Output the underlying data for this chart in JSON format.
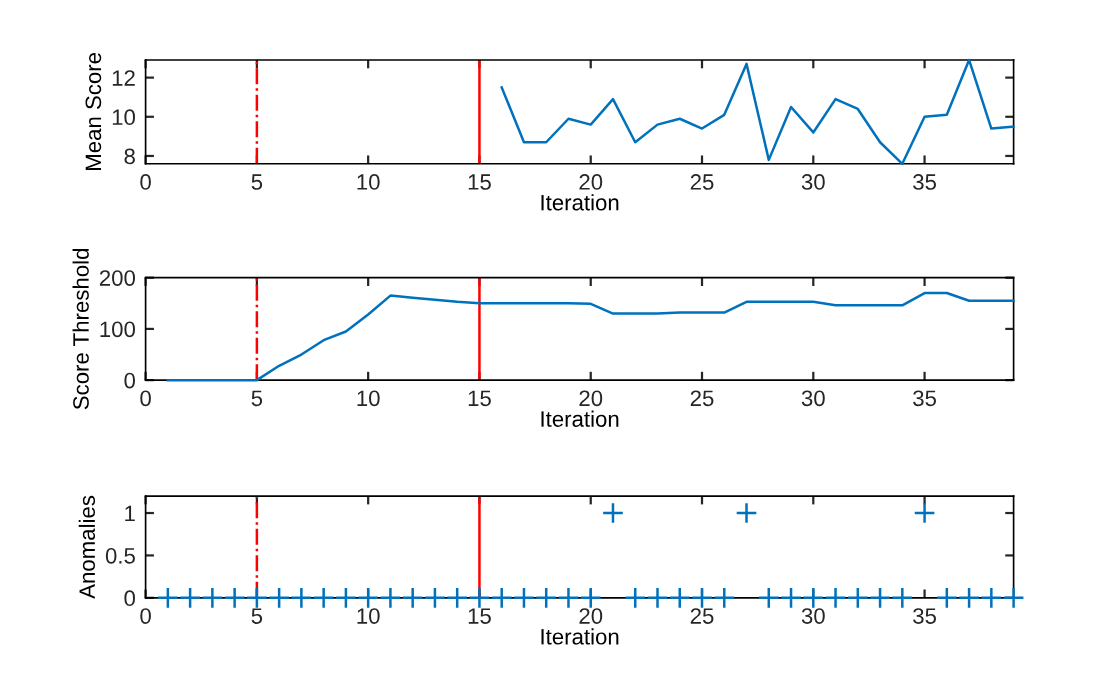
{
  "chart_data": [
    {
      "type": "line",
      "ylabel": "Mean Score",
      "xlabel": "Iteration",
      "x": [
        16,
        17,
        18,
        19,
        20,
        21,
        22,
        23,
        24,
        25,
        26,
        27,
        28,
        29,
        30,
        31,
        32,
        33,
        34,
        35,
        36,
        37,
        38,
        39
      ],
      "series": [
        {
          "color": "#0072bd",
          "values": [
            11.5,
            8.7,
            8.7,
            9.9,
            9.6,
            10.9,
            8.7,
            9.6,
            9.9,
            9.4,
            10.1,
            12.7,
            7.8,
            10.5,
            9.2,
            10.9,
            10.4,
            8.7,
            7.6,
            10.0,
            10.1,
            12.9,
            9.4,
            9.5
          ]
        }
      ],
      "xlim": [
        0,
        39
      ],
      "xticks": [
        0,
        5,
        10,
        15,
        20,
        25,
        30,
        35
      ],
      "ylim": [
        7.6,
        12.9
      ],
      "yticks": [
        8,
        10,
        12
      ],
      "grid": false,
      "marker": "none",
      "ref_lines": [
        {
          "axis": "x",
          "value": 5,
          "color": "#ff0000",
          "line_style": "dashdot"
        },
        {
          "axis": "x",
          "value": 15,
          "color": "#ff0000",
          "line_style": "solid"
        }
      ]
    },
    {
      "type": "line",
      "ylabel": "Score Threshold",
      "xlabel": "Iteration",
      "x": [
        1,
        2,
        3,
        4,
        5,
        6,
        7,
        8,
        9,
        10,
        11,
        12,
        13,
        14,
        15,
        16,
        17,
        18,
        19,
        20,
        21,
        22,
        23,
        24,
        25,
        26,
        27,
        28,
        29,
        30,
        31,
        32,
        33,
        34,
        35,
        36,
        37,
        38,
        39
      ],
      "series": [
        {
          "color": "#0072bd",
          "values": [
            0,
            0,
            0,
            0,
            0,
            28,
            50,
            78,
            95,
            128,
            165,
            161,
            157,
            153,
            150,
            150,
            150,
            150,
            150,
            149,
            130,
            130,
            130,
            132,
            132,
            132,
            153,
            153,
            153,
            153,
            146,
            146,
            146,
            146,
            170,
            170,
            155,
            155,
            155
          ]
        }
      ],
      "xlim": [
        0,
        39
      ],
      "xticks": [
        0,
        5,
        10,
        15,
        20,
        25,
        30,
        35
      ],
      "ylim": [
        0,
        200
      ],
      "yticks": [
        0,
        100,
        200
      ],
      "grid": false,
      "marker": "none",
      "ref_lines": [
        {
          "axis": "x",
          "value": 5,
          "color": "#ff0000",
          "line_style": "dashdot"
        },
        {
          "axis": "x",
          "value": 15,
          "color": "#ff0000",
          "line_style": "solid"
        }
      ]
    },
    {
      "type": "scatter",
      "ylabel": "Anomalies",
      "xlabel": "Iteration",
      "x": [
        1,
        2,
        3,
        4,
        5,
        6,
        7,
        8,
        9,
        10,
        11,
        12,
        13,
        14,
        15,
        16,
        17,
        18,
        19,
        20,
        21,
        22,
        23,
        24,
        25,
        26,
        27,
        28,
        29,
        30,
        31,
        32,
        33,
        34,
        35,
        36,
        37,
        38,
        39
      ],
      "series": [
        {
          "color": "#0072bd",
          "values": [
            0,
            0,
            0,
            0,
            0,
            0,
            0,
            0,
            0,
            0,
            0,
            0,
            0,
            0,
            0,
            0,
            0,
            0,
            0,
            0,
            1,
            0,
            0,
            0,
            0,
            0,
            1,
            0,
            0,
            0,
            0,
            0,
            0,
            0,
            1,
            0,
            0,
            0,
            0
          ]
        }
      ],
      "xlim": [
        0,
        39
      ],
      "xticks": [
        0,
        5,
        10,
        15,
        20,
        25,
        30,
        35
      ],
      "ylim": [
        0,
        1.2
      ],
      "yticks": [
        0,
        0.5,
        1
      ],
      "grid": false,
      "marker": "cross",
      "ref_lines": [
        {
          "axis": "x",
          "value": 5,
          "color": "#ff0000",
          "line_style": "dashdot"
        },
        {
          "axis": "x",
          "value": 15,
          "color": "#ff0000",
          "line_style": "solid"
        }
      ]
    }
  ]
}
